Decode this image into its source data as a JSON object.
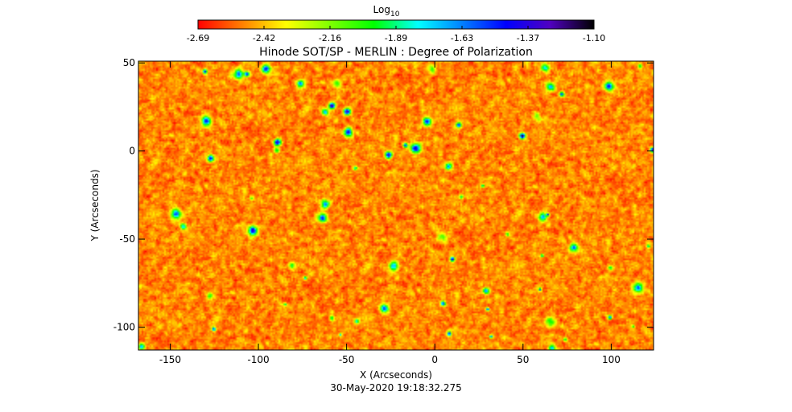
{
  "chart_data": {
    "type": "heatmap",
    "title": "Hinode SOT/SP - MERLIN : Degree of Polarization",
    "xlabel": "X (Arcseconds)",
    "ylabel": "Y (Arcseconds)",
    "xlim": [
      -168,
      124
    ],
    "ylim": [
      -113,
      51
    ],
    "xticks": [
      -150,
      -100,
      -50,
      0,
      50,
      100
    ],
    "yticks": [
      50,
      0,
      -50,
      -100
    ],
    "timestamp": "30-May-2020 19:18:32.275",
    "colorbar": {
      "title_base": "Log",
      "title_sub": "10",
      "range": [
        -2.69,
        -1.1
      ],
      "ticks": [
        "-2.69",
        "-2.42",
        "-2.16",
        "-1.89",
        "-1.63",
        "-1.37",
        "-1.10"
      ],
      "colors": [
        "#ff0000",
        "#ff7f00",
        "#ffff00",
        "#7fff00",
        "#00ff00",
        "#00ffff",
        "#0080ff",
        "#0000ff",
        "#5000c0",
        "#000000"
      ]
    },
    "grid": false,
    "legend": "none"
  }
}
